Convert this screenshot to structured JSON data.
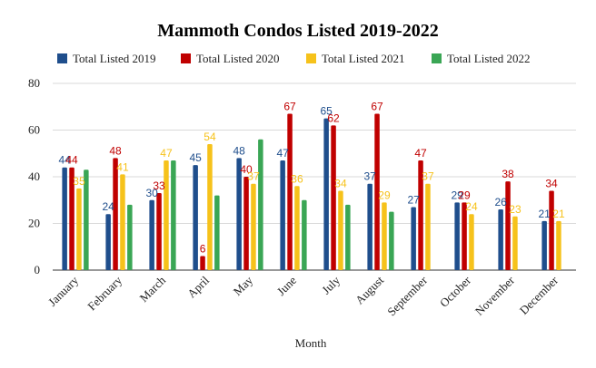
{
  "chart_data": {
    "type": "bar",
    "title": "Mammoth Condos Listed 2019-2022",
    "xlabel": "Month",
    "ylabel": "",
    "ylim": [
      0,
      80
    ],
    "yticks": [
      0,
      20,
      40,
      60,
      80
    ],
    "grid": true,
    "legend_position": "top",
    "categories": [
      "January",
      "February",
      "March",
      "April",
      "May",
      "June",
      "July",
      "August",
      "September",
      "October",
      "November",
      "December"
    ],
    "series": [
      {
        "name": "Total Listed 2019",
        "color": "#1f4e8c",
        "values": [
          44,
          24,
          30,
          45,
          48,
          47,
          65,
          37,
          27,
          29,
          26,
          21
        ]
      },
      {
        "name": "Total Listed 2020",
        "color": "#c00000",
        "values": [
          44,
          48,
          33,
          6,
          40,
          67,
          62,
          67,
          47,
          29,
          38,
          34
        ]
      },
      {
        "name": "Total Listed 2021",
        "color": "#f6c21b",
        "values": [
          35,
          41,
          47,
          54,
          37,
          36,
          34,
          29,
          37,
          24,
          23,
          21
        ]
      },
      {
        "name": "Total Listed 2022",
        "color": "#3aa655",
        "values": [
          43,
          28,
          47,
          32,
          56,
          30,
          28,
          25,
          null,
          null,
          null,
          null
        ]
      }
    ]
  }
}
